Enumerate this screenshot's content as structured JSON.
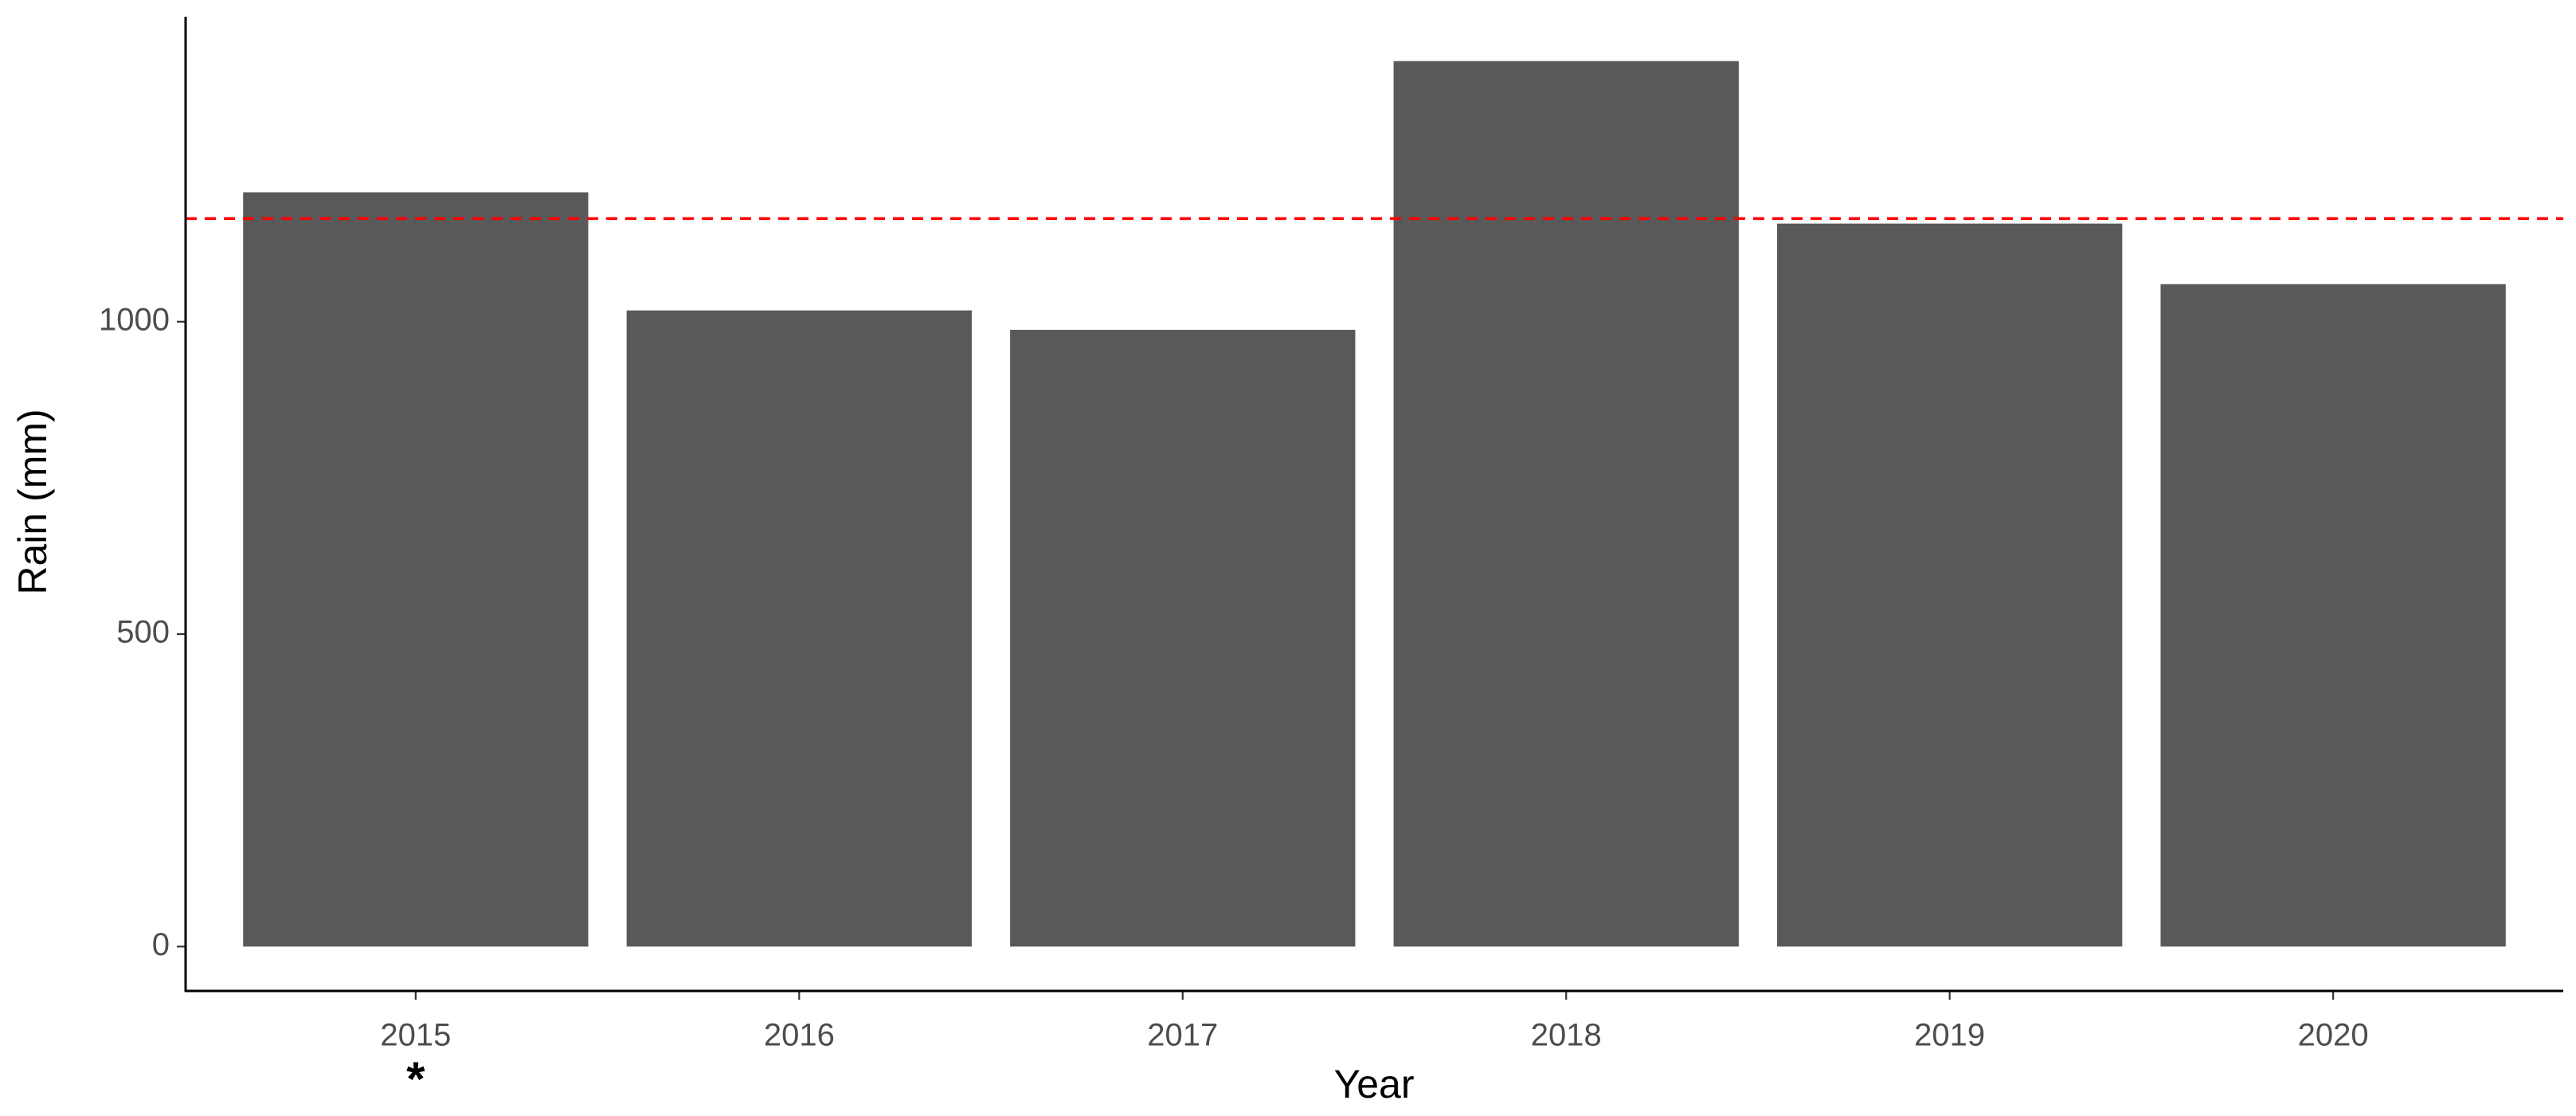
{
  "chart_data": {
    "type": "bar",
    "categories": [
      "2015",
      "2016",
      "2017",
      "2018",
      "2019",
      "2020"
    ],
    "values": [
      1207,
      1018,
      987,
      1417,
      1157,
      1060
    ],
    "color": "#595959",
    "x_label": "Year",
    "y_label": "Rain (mm)",
    "ylim": [
      -71,
      1488
    ],
    "yticks": [
      0,
      500,
      1000
    ],
    "reference_line": {
      "value": 1165,
      "color": "#ff0000"
    },
    "annotations": [
      {
        "category_index": 0,
        "text": "*"
      }
    ],
    "grid": false
  }
}
